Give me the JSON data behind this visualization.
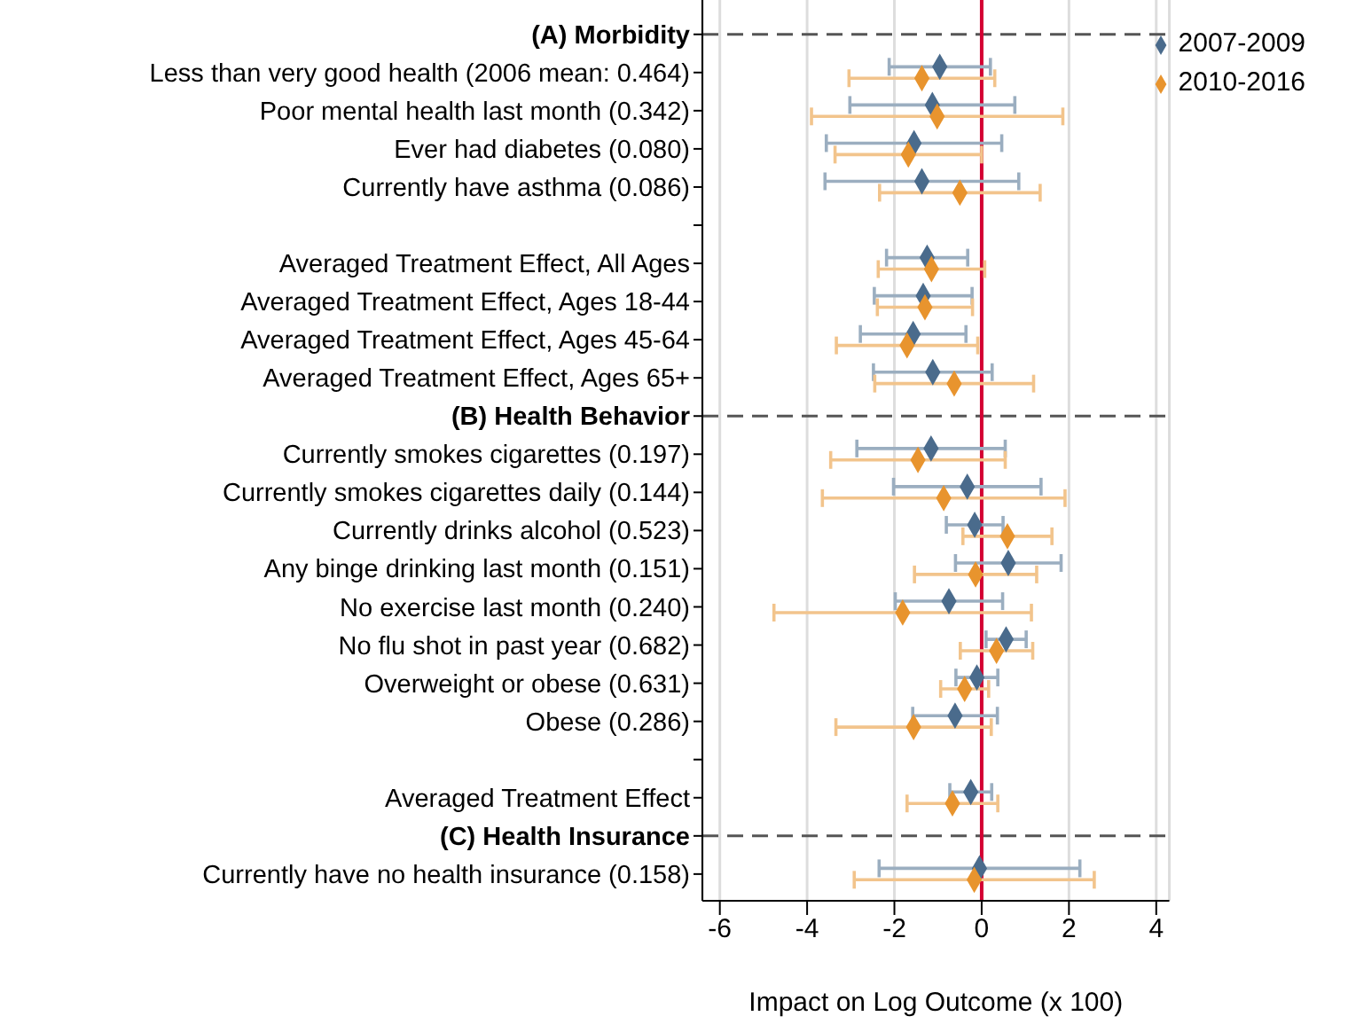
{
  "chart_data": {
    "type": "scatter",
    "xlabel": "Impact on Log Outcome (x 100)",
    "categories": [
      "(A) Morbidity",
      "Less than very good health (2006 mean: 0.464)",
      "Poor mental health last month (0.342)",
      "Ever had diabetes (0.080)",
      "Currently have asthma (0.086)",
      null,
      "Averaged Treatment Effect, All Ages",
      "Averaged Treatment Effect, Ages 18-44",
      "Averaged Treatment Effect, Ages 45-64",
      "Averaged Treatment Effect, Ages 65+",
      "(B) Health Behavior",
      "Currently smokes cigarettes (0.197)",
      "Currently smokes cigarettes daily (0.144)",
      "Currently drinks alcohol (0.523)",
      "Any binge drinking last month (0.151)",
      "No exercise last month (0.240)",
      "No flu shot in past year (0.682)",
      "Overweight or obese (0.631)",
      "Obese (0.286)",
      null,
      "Averaged Treatment Effect",
      "(C) Health Insurance",
      "Currently have no health insurance (0.158)"
    ],
    "orientation": "horizontal",
    "series": [
      {
        "name": "2007-2009",
        "color": "#4a6b8c",
        "values": [
          null,
          -0.96,
          -1.13,
          -1.55,
          -1.37,
          null,
          -1.25,
          -1.34,
          -1.57,
          -1.12,
          null,
          -1.16,
          -0.33,
          -0.16,
          0.61,
          -0.75,
          0.56,
          -0.11,
          -0.61,
          null,
          -0.25,
          null,
          -0.05
        ],
        "errors": [
          null,
          1.16,
          1.89,
          2.01,
          2.22,
          null,
          0.93,
          1.12,
          1.21,
          1.36,
          null,
          1.7,
          1.69,
          0.65,
          1.21,
          1.23,
          0.46,
          0.48,
          0.97,
          null,
          0.48,
          null,
          2.3
        ]
      },
      {
        "name": "2010-2016",
        "color": "#e8942e",
        "values": [
          null,
          -1.37,
          -1.02,
          -1.68,
          -0.5,
          null,
          -1.15,
          -1.3,
          -1.71,
          -0.63,
          null,
          -1.46,
          -0.87,
          0.59,
          -0.14,
          -1.81,
          0.34,
          -0.39,
          -1.56,
          null,
          -0.67,
          null,
          -0.17
        ],
        "errors": [
          null,
          1.67,
          2.88,
          1.68,
          1.84,
          null,
          1.22,
          1.09,
          1.62,
          1.82,
          null,
          2.0,
          2.78,
          1.02,
          1.4,
          2.95,
          0.83,
          0.55,
          1.78,
          null,
          1.04,
          null,
          2.75
        ]
      }
    ],
    "xlim": [
      -6.4,
      4.3
    ],
    "xticks": [
      -6,
      -4,
      -2,
      0,
      2,
      4
    ],
    "ref_lines": [
      {
        "axis": "x",
        "value": 0,
        "color": "#d40032",
        "line_style": "solid"
      },
      {
        "axis": "y",
        "value": "(A) Morbidity",
        "color": "#555555",
        "line_style": "dashed"
      },
      {
        "axis": "y",
        "value": "(B) Health Behavior",
        "color": "#555555",
        "line_style": "dashed"
      },
      {
        "axis": "y",
        "value": "(C) Health Insurance",
        "color": "#555555",
        "line_style": "dashed"
      }
    ],
    "grid": "x",
    "legend": "top right",
    "marker": "diamond"
  }
}
